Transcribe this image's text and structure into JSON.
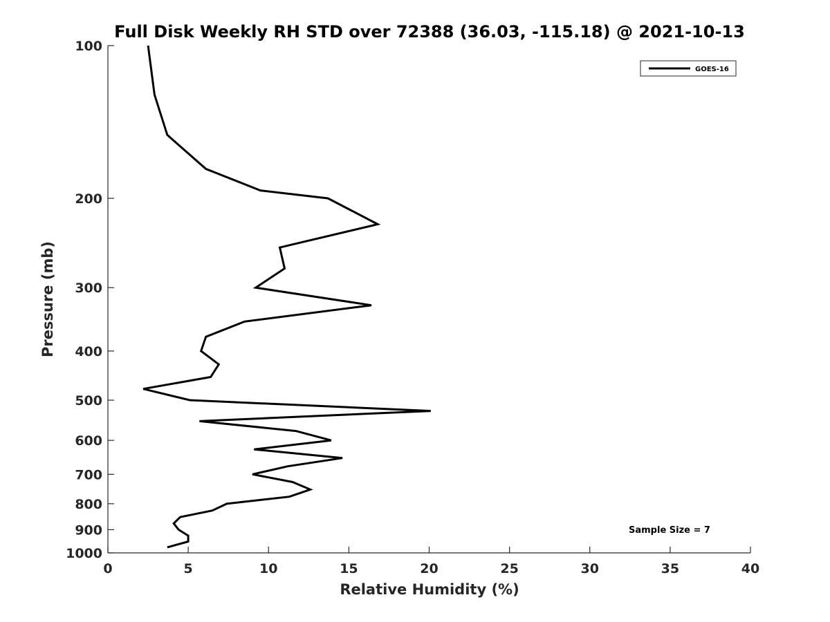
{
  "chart_data": {
    "type": "line",
    "title": "Full Disk Weekly RH STD over 72388 (36.03, -115.18) @ 2021-10-13",
    "xlabel": "Relative Humidity (%)",
    "ylabel": "Pressure (mb)",
    "xlim": [
      0,
      40
    ],
    "ylim": [
      100,
      1000
    ],
    "y_scale": "log",
    "y_inverted": true,
    "x_ticks": [
      0,
      5,
      10,
      15,
      20,
      25,
      30,
      35,
      40
    ],
    "y_ticks": [
      100,
      200,
      300,
      400,
      500,
      600,
      700,
      800,
      900,
      1000
    ],
    "grid": false,
    "legend_position": "top-right",
    "annotation": "Sample Size = 7",
    "series": [
      {
        "name": "GOES-16",
        "color": "#000000",
        "points": [
          {
            "x": 2.5,
            "y": 100
          },
          {
            "x": 2.9,
            "y": 125
          },
          {
            "x": 3.7,
            "y": 150
          },
          {
            "x": 6.1,
            "y": 175
          },
          {
            "x": 9.5,
            "y": 193
          },
          {
            "x": 13.7,
            "y": 200
          },
          {
            "x": 16.8,
            "y": 225
          },
          {
            "x": 10.7,
            "y": 250
          },
          {
            "x": 11.0,
            "y": 275
          },
          {
            "x": 9.2,
            "y": 300
          },
          {
            "x": 16.4,
            "y": 325
          },
          {
            "x": 8.5,
            "y": 350
          },
          {
            "x": 6.1,
            "y": 375
          },
          {
            "x": 5.8,
            "y": 400
          },
          {
            "x": 6.9,
            "y": 425
          },
          {
            "x": 6.4,
            "y": 450
          },
          {
            "x": 2.2,
            "y": 475
          },
          {
            "x": 5.1,
            "y": 500
          },
          {
            "x": 20.1,
            "y": 525
          },
          {
            "x": 5.7,
            "y": 550
          },
          {
            "x": 11.7,
            "y": 575
          },
          {
            "x": 13.9,
            "y": 600
          },
          {
            "x": 9.1,
            "y": 625
          },
          {
            "x": 14.6,
            "y": 650
          },
          {
            "x": 11.2,
            "y": 675
          },
          {
            "x": 9.0,
            "y": 700
          },
          {
            "x": 11.5,
            "y": 725
          },
          {
            "x": 12.6,
            "y": 750
          },
          {
            "x": 11.3,
            "y": 775
          },
          {
            "x": 7.4,
            "y": 800
          },
          {
            "x": 6.5,
            "y": 825
          },
          {
            "x": 4.5,
            "y": 850
          },
          {
            "x": 4.1,
            "y": 875
          },
          {
            "x": 4.4,
            "y": 900
          },
          {
            "x": 5.0,
            "y": 925
          },
          {
            "x": 5.0,
            "y": 950
          },
          {
            "x": 3.7,
            "y": 975
          }
        ]
      }
    ]
  }
}
